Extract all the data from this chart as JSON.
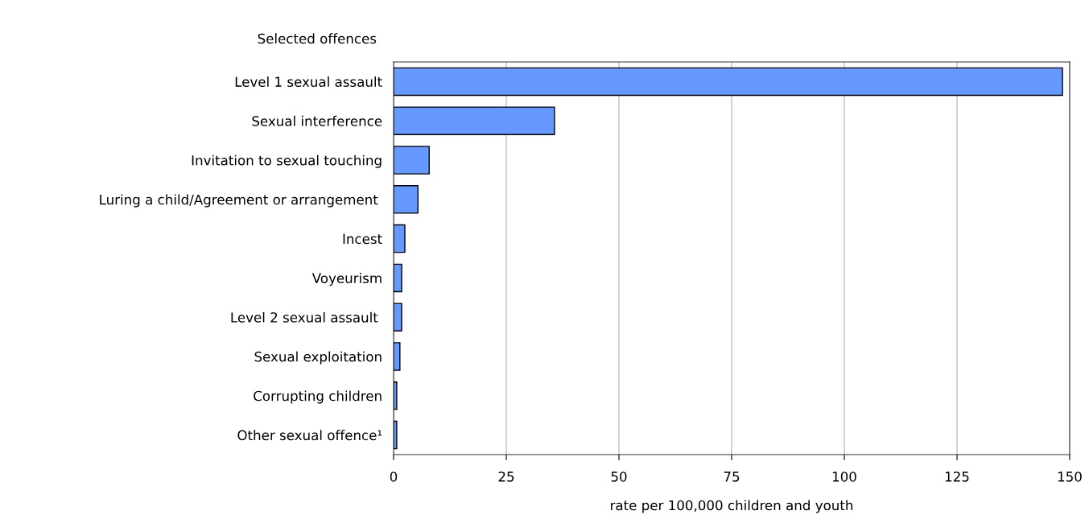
{
  "chart_data": {
    "type": "bar",
    "orientation": "horizontal",
    "ylabel": "Selected offences",
    "xlabel": "rate per 100,000 children and youth",
    "categories": [
      "Level 1 sexual assault",
      "Sexual interference",
      "Invitation to sexual touching",
      "Luring a child/Agreement or arrangement ",
      "Incest",
      "Voyeurism",
      "Level 2 sexual assault ",
      "Sexual exploitation",
      "Corrupting children",
      "Other sexual offence¹"
    ],
    "values": [
      148.4,
      35.7,
      7.9,
      5.4,
      2.5,
      1.8,
      1.8,
      1.4,
      0.7,
      0.7
    ],
    "color": "#6699ff",
    "xlim": [
      0,
      150
    ],
    "xticks": [
      0,
      25,
      50,
      75,
      100,
      125,
      150
    ],
    "grid": "x",
    "legend": false
  }
}
